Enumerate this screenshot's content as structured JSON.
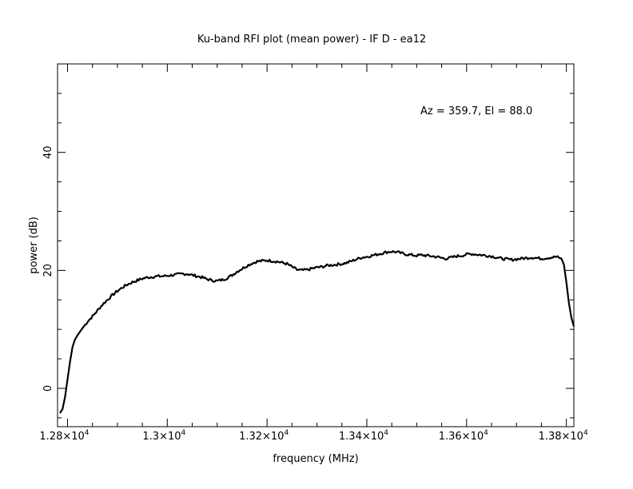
{
  "chart_data": {
    "type": "line",
    "title": "Ku-band RFI plot (mean power) - IF D - ea12",
    "xlabel": "frequency (MHz)",
    "ylabel": "power (dB)",
    "annotation": "Az = 359.7, El = 88.0",
    "xlim": [
      12780,
      13815
    ],
    "ylim": [
      -6.5,
      55
    ],
    "x_ticks": [
      {
        "value": 12800,
        "mantissa": "1.28",
        "exp": "4"
      },
      {
        "value": 13000,
        "mantissa": "1.3",
        "exp": "4"
      },
      {
        "value": 13200,
        "mantissa": "1.32",
        "exp": "4"
      },
      {
        "value": 13400,
        "mantissa": "1.34",
        "exp": "4"
      },
      {
        "value": 13600,
        "mantissa": "1.36",
        "exp": "4"
      },
      {
        "value": 13800,
        "mantissa": "1.38",
        "exp": "4"
      }
    ],
    "y_ticks": [
      0,
      20,
      40
    ],
    "grid": false,
    "series": [
      {
        "line_color": "#000000",
        "x": [
          12785,
          12790,
          12795,
          12800,
          12805,
          12810,
          12815,
          12820,
          12830,
          12840,
          12850,
          12860,
          12870,
          12880,
          12890,
          12900,
          12910,
          12920,
          12930,
          12940,
          12950,
          12960,
          12970,
          12980,
          12990,
          13000,
          13010,
          13020,
          13030,
          13040,
          13050,
          13060,
          13070,
          13080,
          13090,
          13100,
          13110,
          13120,
          13130,
          13140,
          13150,
          13160,
          13170,
          13180,
          13190,
          13200,
          13210,
          13220,
          13230,
          13240,
          13250,
          13260,
          13270,
          13280,
          13290,
          13300,
          13310,
          13320,
          13330,
          13340,
          13350,
          13360,
          13370,
          13380,
          13390,
          13400,
          13410,
          13420,
          13430,
          13440,
          13450,
          13460,
          13470,
          13480,
          13490,
          13500,
          13510,
          13520,
          13530,
          13540,
          13550,
          13560,
          13570,
          13580,
          13590,
          13600,
          13610,
          13620,
          13630,
          13640,
          13650,
          13660,
          13670,
          13680,
          13690,
          13700,
          13710,
          13720,
          13730,
          13740,
          13750,
          13760,
          13770,
          13780,
          13790,
          13795,
          13800,
          13805,
          13810,
          13815
        ],
        "y": [
          -4.2,
          -3.5,
          -1.5,
          1.5,
          4.5,
          7.0,
          8.3,
          9.0,
          10.2,
          11.3,
          12.2,
          13.2,
          14.2,
          15.0,
          15.8,
          16.5,
          17.1,
          17.6,
          18.0,
          18.3,
          18.6,
          18.8,
          18.9,
          19.0,
          19.0,
          19.1,
          19.2,
          19.3,
          19.4,
          19.4,
          19.2,
          19.0,
          18.8,
          18.5,
          18.3,
          18.2,
          18.4,
          18.7,
          19.2,
          19.8,
          20.3,
          20.8,
          21.2,
          21.5,
          21.6,
          21.7,
          21.6,
          21.5,
          21.3,
          21.1,
          20.6,
          20.1,
          20.0,
          20.1,
          20.3,
          20.5,
          20.6,
          20.8,
          20.9,
          21.0,
          21.1,
          21.3,
          21.6,
          21.9,
          22.2,
          22.3,
          22.5,
          22.7,
          22.9,
          23.1,
          23.2,
          23.1,
          22.9,
          22.7,
          22.6,
          22.5,
          22.6,
          22.5,
          22.4,
          22.3,
          22.1,
          22.0,
          22.2,
          22.4,
          22.5,
          22.7,
          22.8,
          22.7,
          22.6,
          22.5,
          22.4,
          22.2,
          22.0,
          21.9,
          21.8,
          21.9,
          22.0,
          22.1,
          22.2,
          22.1,
          22.0,
          22.1,
          22.2,
          22.3,
          22.0,
          21.0,
          18.0,
          14.5,
          12.0,
          10.5
        ]
      }
    ]
  }
}
